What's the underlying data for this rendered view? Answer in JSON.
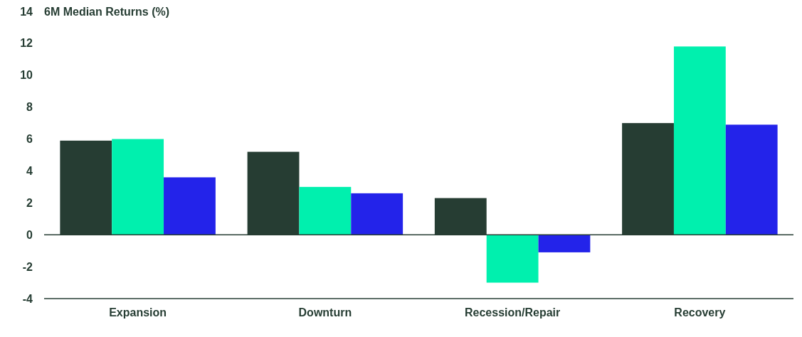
{
  "chart_data": {
    "type": "bar",
    "title": "6M Median Returns (%)",
    "categories": [
      "Expansion",
      "Downturn",
      "Recession/Repair",
      "Recovery"
    ],
    "series": [
      {
        "color": "#263d33",
        "values": [
          5.9,
          5.2,
          2.3,
          7.0
        ]
      },
      {
        "color": "#00f0ae",
        "values": [
          6.0,
          3.0,
          -3.0,
          11.8
        ]
      },
      {
        "color": "#2323ea",
        "values": [
          3.6,
          2.6,
          -1.1,
          6.9
        ]
      }
    ],
    "ylim": [
      -4,
      14
    ],
    "yticks": [
      -4,
      -2,
      0,
      2,
      4,
      6,
      8,
      10,
      12,
      14
    ]
  }
}
